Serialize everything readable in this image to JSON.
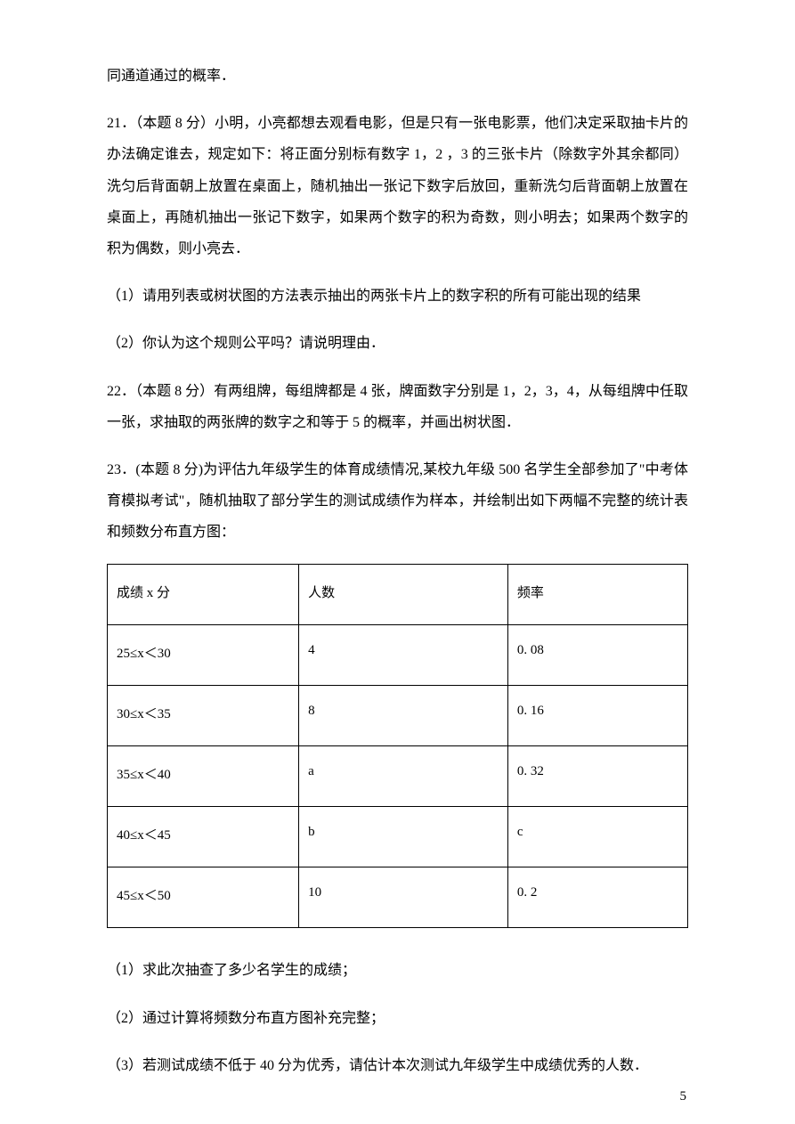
{
  "p1": "同通道通过的概率．",
  "p2": "21．（本题 8 分）小明，小亮都想去观看电影，但是只有一张电影票，他们决定采取抽卡片的办法确定谁去，规定如下：将正面分别标有数字 1，2 ，3 的三张卡片（除数字外其余都同）洗匀后背面朝上放置在桌面上，随机抽出一张记下数字后放回，重新洗匀后背面朝上放置在桌面上，再随机抽出一张记下数字，如果两个数字的积为奇数，则小明去；如果两个数字的积为偶数，则小亮去．",
  "p3": "（1）请用列表或树状图的方法表示抽出的两张卡片上的数字积的所有可能出现的结果",
  "p4": "（2）你认为这个规则公平吗？请说明理由．",
  "p5": "22．（本题 8 分）有两组牌，每组牌都是 4 张，牌面数字分别是 1，2，3，4，从每组牌中任取一张，求抽取的两张牌的数字之和等于 5 的概率，并画出树状图．",
  "p6": "23．(本题 8 分)为评估九年级学生的体育成绩情况,某校九年级 500 名学生全部参加了\"中考体育模拟考试\"，随机抽取了部分学生的测试成绩作为样本，并绘制出如下两幅不完整的统计表和频数分布直方图：",
  "table": {
    "columns": [
      "成绩 x 分",
      "人数",
      "频率"
    ],
    "rows": [
      [
        "25≤x＜30",
        "4",
        "0. 08"
      ],
      [
        "30≤x＜35",
        "8",
        "0. 16"
      ],
      [
        "35≤x＜40",
        "a",
        "0. 32"
      ],
      [
        "40≤x＜45",
        "b",
        "c"
      ],
      [
        "45≤x＜50",
        "10",
        "0. 2"
      ]
    ]
  },
  "p7": "（1）求此次抽查了多少名学生的成绩；",
  "p8": "（2）通过计算将频数分布直方图补充完整；",
  "p9": "（3）若测试成绩不低于 40 分为优秀，请估计本次测试九年级学生中成绩优秀的人数．",
  "pageNumber": "5"
}
